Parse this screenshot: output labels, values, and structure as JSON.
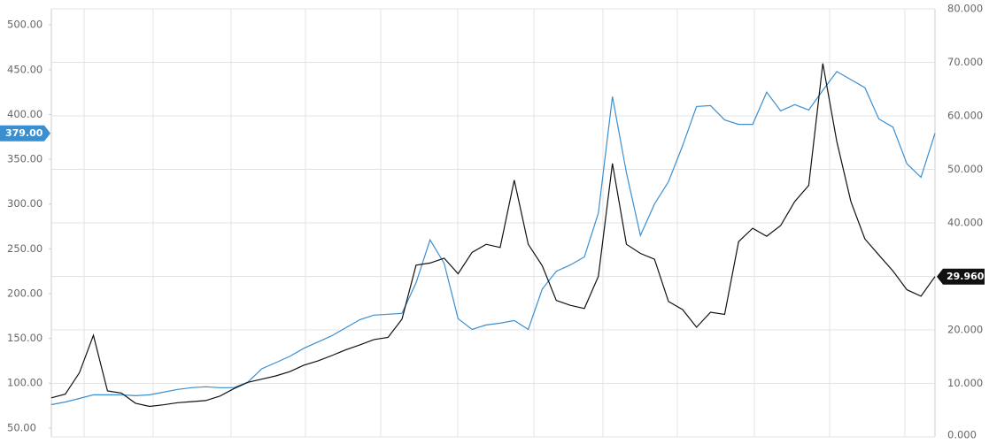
{
  "chart_data": {
    "type": "line",
    "categories": [
      null,
      null,
      null,
      null,
      null,
      null,
      null,
      null,
      null,
      null,
      null,
      null,
      null,
      null,
      null,
      null,
      null,
      null,
      null,
      null,
      null,
      null,
      null,
      null,
      null,
      null,
      null,
      null,
      null,
      null,
      null,
      null,
      null,
      null,
      null,
      null,
      null,
      null,
      null,
      null,
      null,
      null,
      null,
      null,
      null,
      null,
      null,
      null,
      null,
      null,
      null,
      null,
      null,
      null,
      null,
      null,
      null,
      null,
      null,
      null,
      null,
      null,
      null,
      null
    ],
    "series": [
      {
        "color": "#3a8fd1",
        "axis": "y",
        "values": [
          76,
          79,
          83,
          87,
          87,
          87,
          86,
          87,
          90,
          93,
          95,
          96,
          95,
          95,
          101,
          116,
          123,
          130,
          139,
          146,
          153,
          162,
          171,
          176,
          177,
          178,
          212,
          260,
          234,
          172,
          160,
          165,
          167,
          170,
          160,
          205,
          225,
          232,
          241,
          290,
          420,
          335,
          265,
          300,
          325,
          365,
          409,
          410,
          394,
          389,
          389,
          425,
          404,
          411,
          405,
          427,
          448,
          439,
          430,
          395,
          386,
          345,
          330,
          379
        ]
      },
      {
        "color": "#111111",
        "axis": "y2",
        "values": [
          7.3,
          8.0,
          12.0,
          19.0,
          8.6,
          8.2,
          6.3,
          5.7,
          6.0,
          6.4,
          6.6,
          6.8,
          7.6,
          9.0,
          10.2,
          10.8,
          11.4,
          12.2,
          13.4,
          14.2,
          15.2,
          16.3,
          17.2,
          18.2,
          18.6,
          22.0,
          32.1,
          32.5,
          33.4,
          30.5,
          34.5,
          36.0,
          35.4,
          48.0,
          36.0,
          32.0,
          25.5,
          24.6,
          24.0,
          30.0,
          51.1,
          36.0,
          34.3,
          33.2,
          25.3,
          23.8,
          20.5,
          23.3,
          22.9,
          36.5,
          39.0,
          37.5,
          39.5,
          44.0,
          47.0,
          69.8,
          55.2,
          44.0,
          37.0,
          34.0,
          31.0,
          27.5,
          26.3,
          29.96
        ]
      }
    ],
    "ylim": [
      40,
      518
    ],
    "yticks": [
      {
        "value": 50,
        "label": "50.00"
      },
      {
        "value": 100,
        "label": "100.00"
      },
      {
        "value": 150,
        "label": "150.00"
      },
      {
        "value": 200,
        "label": "200.00"
      },
      {
        "value": 250,
        "label": "250.00"
      },
      {
        "value": 300,
        "label": "300.00"
      },
      {
        "value": 350,
        "label": "350.00"
      },
      {
        "value": 400,
        "label": "400.00"
      },
      {
        "value": 450,
        "label": "450.00"
      },
      {
        "value": 500,
        "label": "500.00"
      }
    ],
    "y2lim": [
      0,
      80
    ],
    "y2ticks": [
      {
        "value": 0,
        "label": "0.000"
      },
      {
        "value": 10,
        "label": "10.000"
      },
      {
        "value": 20,
        "label": "20.000"
      },
      {
        "value": 30,
        "label": "30.000"
      },
      {
        "value": 40,
        "label": "40.000"
      },
      {
        "value": 50,
        "label": "50.000"
      },
      {
        "value": 60,
        "label": "60.000"
      },
      {
        "value": 70,
        "label": "70.000"
      },
      {
        "value": 80,
        "label": "80.000"
      }
    ],
    "grid": true,
    "annotations": [
      {
        "text": "379.00",
        "value": 379,
        "axis": "y",
        "color": "#3a8fd1"
      },
      {
        "text": "29.960",
        "value": 29.96,
        "axis": "y2",
        "color": "#111111"
      }
    ]
  }
}
